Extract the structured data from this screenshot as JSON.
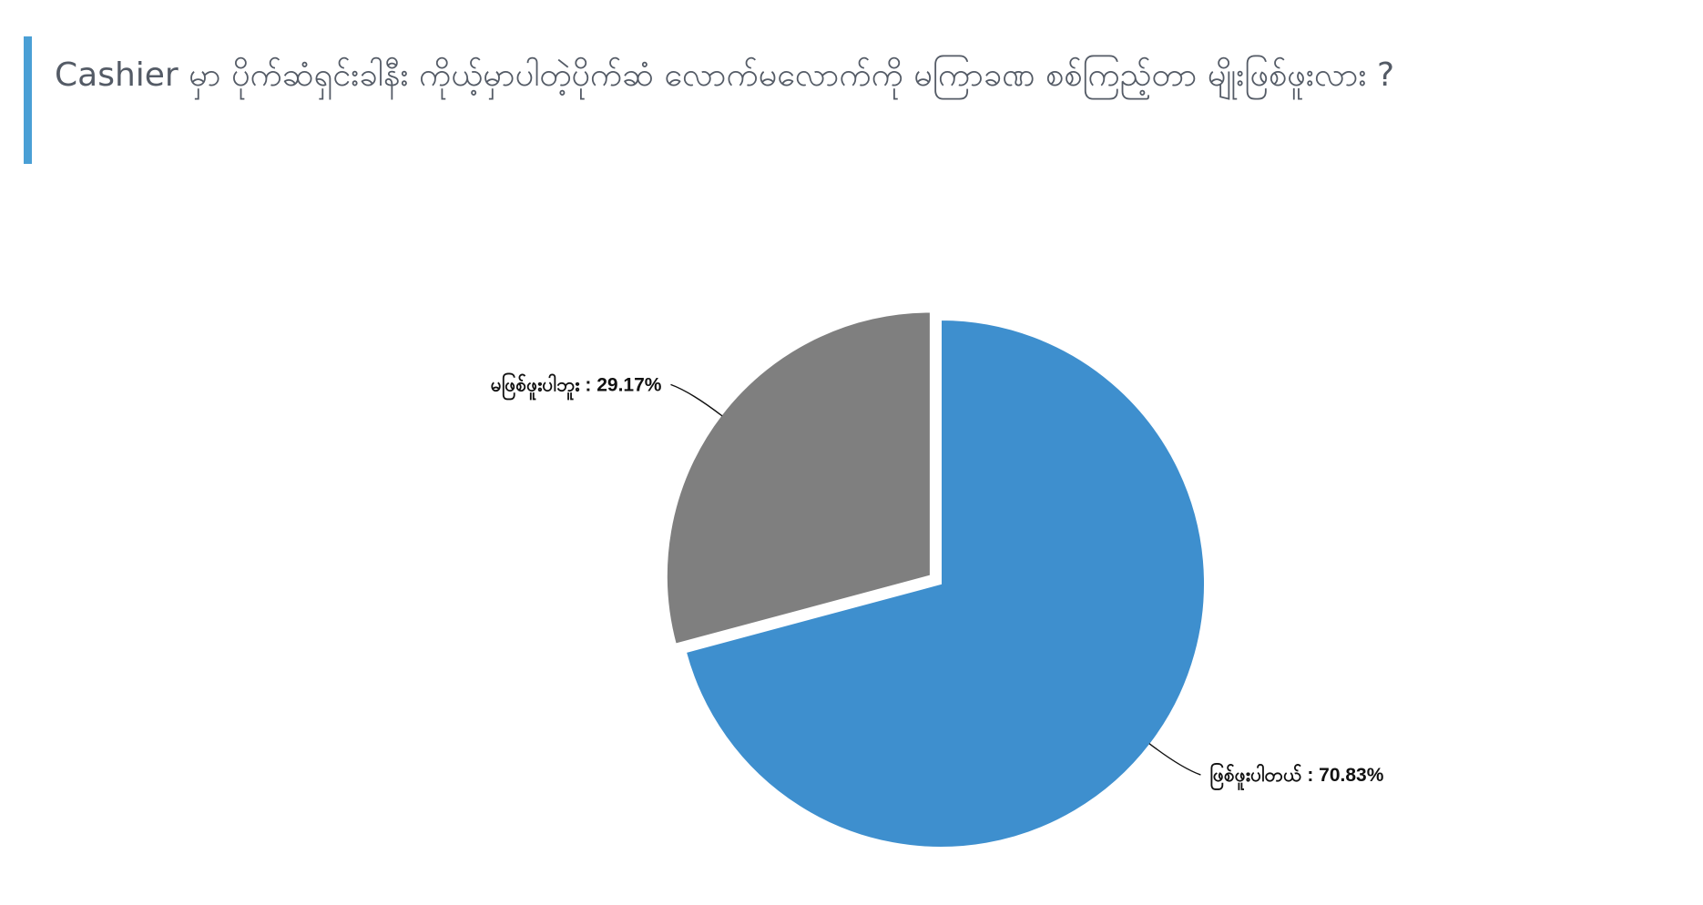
{
  "title": "Cashier မှာ ပိုက်ဆံရှင်းခါနီး ကိုယ့်မှာပါတဲ့ပိုက်ဆံ လောက်မလောက်ကို မကြာခဏ စစ်ကြည့်တာ မျိုးဖြစ်ဖူးလား ?",
  "chart_data": {
    "type": "pie",
    "title": "Cashier မှာ ပိုက်ဆံရှင်းခါနီး ကိုယ့်မှာပါတဲ့ပိုက်ဆံ လောက်မလောက်ကို မကြာခဏ စစ်ကြည့်တာ မျိုးဖြစ်ဖူးလား ?",
    "slices": [
      {
        "label": "ဖြစ်ဖူးပါတယ်",
        "value": 70.83,
        "value_label": "70.83%",
        "color": "#3e8fce",
        "exploded": false
      },
      {
        "label": "မဖြစ်ဖူးပါဘူး",
        "value": 29.17,
        "value_label": "29.17%",
        "color": "#7f7f7f",
        "exploded": true
      }
    ],
    "start_angle_deg": 0,
    "direction": "clockwise",
    "legend": "none",
    "label_separator": " : "
  }
}
